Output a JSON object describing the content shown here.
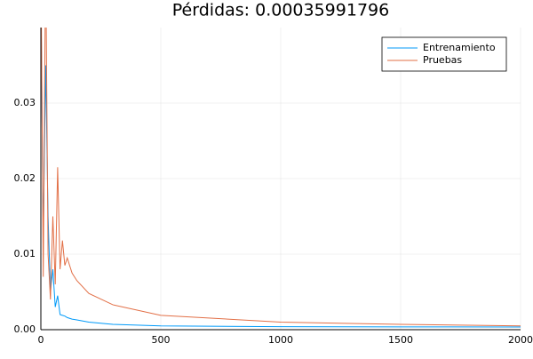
{
  "chart_data": {
    "type": "line",
    "title": "Pérdidas: 0.00035991796",
    "x": [
      0,
      10,
      20,
      30,
      40,
      50,
      60,
      70,
      80,
      90,
      100,
      110,
      130,
      150,
      200,
      300,
      500,
      1000,
      1500,
      2000
    ],
    "series": [
      {
        "name": "Entrenamiento",
        "color": "#009af9",
        "values": [
          0.045,
          0.012,
          0.035,
          0.015,
          0.005,
          0.008,
          0.003,
          0.0045,
          0.002,
          0.0019,
          0.0018,
          0.0016,
          0.0014,
          0.0013,
          0.001,
          0.0007,
          0.0005,
          0.0004,
          0.00037,
          0.00036
        ]
      },
      {
        "name": "Pruebas",
        "color": "#e26f46",
        "values": [
          0.05,
          0.007,
          0.05,
          0.01,
          0.004,
          0.015,
          0.006,
          0.0215,
          0.008,
          0.0118,
          0.0085,
          0.0095,
          0.0075,
          0.0065,
          0.0048,
          0.0033,
          0.0019,
          0.001,
          0.0007,
          0.0005
        ]
      }
    ],
    "xlim": [
      0,
      2000
    ],
    "xticks": [
      0,
      500,
      1000,
      1500,
      2000
    ],
    "ylim": [
      0,
      0.04
    ],
    "yticks": [
      {
        "value": 0,
        "label": "0.00"
      },
      0.01,
      0.02,
      0.03
    ],
    "grid": true,
    "legend": "top-right"
  }
}
